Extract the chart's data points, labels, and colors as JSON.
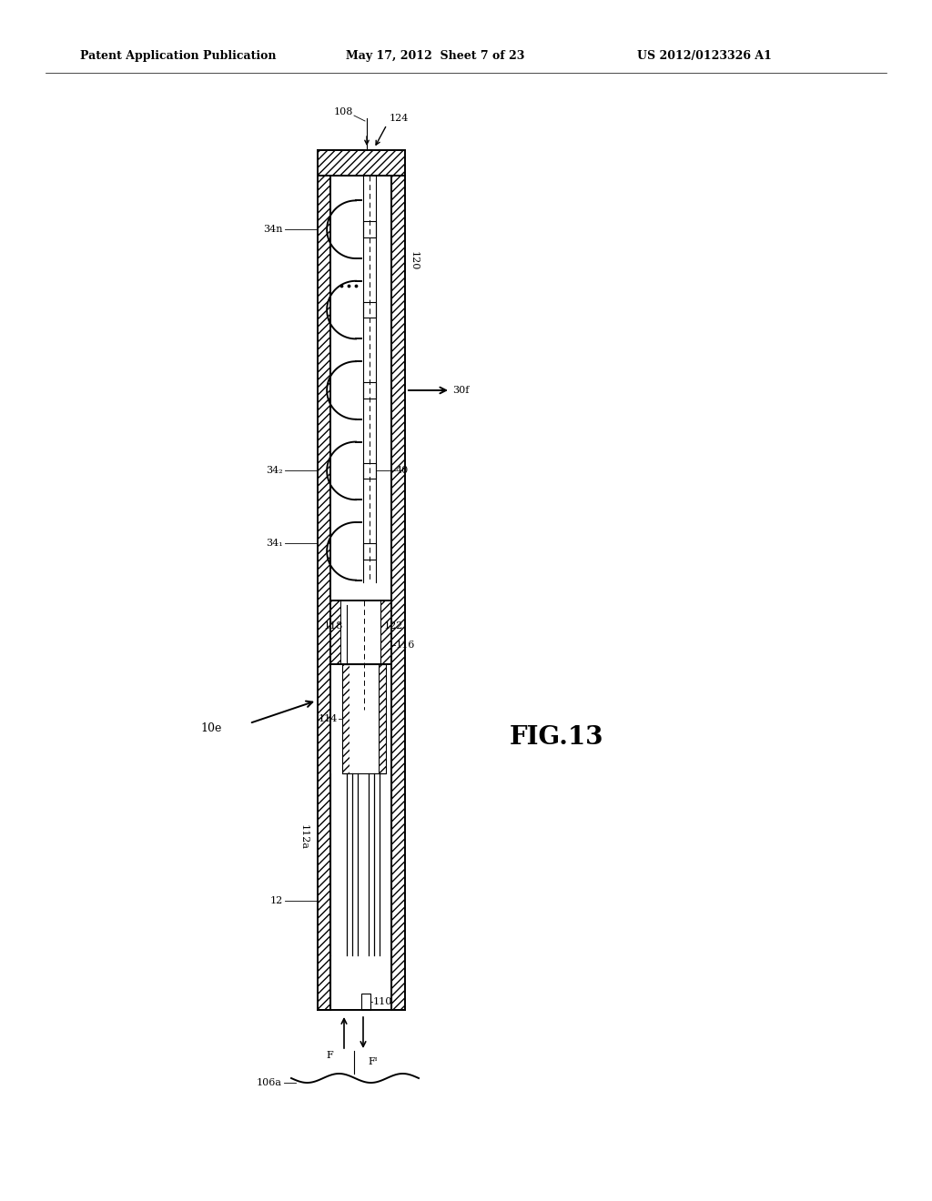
{
  "bg_color": "#ffffff",
  "header_text": "Patent Application Publication",
  "header_date": "May 17, 2012  Sheet 7 of 23",
  "header_patent": "US 2012/0123326 A1",
  "fig_label": "FIG.13"
}
